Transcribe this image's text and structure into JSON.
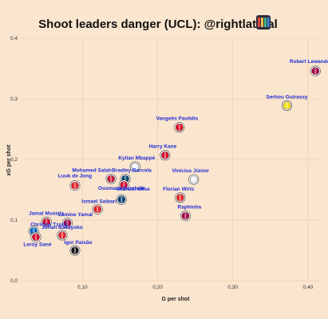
{
  "chart_data": {
    "type": "scatter",
    "title": "Shoot leaders danger (UCL): @rightlateral",
    "xlabel": "G per shot",
    "ylabel": "xG per shot",
    "xlim": [
      0.02,
      0.415
    ],
    "ylim": [
      0,
      0.4
    ],
    "xticks": [
      "0,10",
      "0,20",
      "0,30",
      "0,40"
    ],
    "yticks": [
      "0,0",
      "0,1",
      "0,2",
      "0,3",
      "0,4"
    ],
    "grid": true,
    "points": [
      {
        "name": "Robert Lewandowski",
        "x": 0.41,
        "y": 0.346,
        "club": "barcelona"
      },
      {
        "name": "Serhou Guirassy",
        "x": 0.372,
        "y": 0.289,
        "club": "dortmund"
      },
      {
        "name": "Vangelis Pavlidis",
        "x": 0.229,
        "y": 0.253,
        "club": "benfica"
      },
      {
        "name": "Harry Kane",
        "x": 0.21,
        "y": 0.207,
        "club": "bayern"
      },
      {
        "name": "Vinícius Júnior",
        "x": 0.248,
        "y": 0.167,
        "club": "real-madrid"
      },
      {
        "name": "Kylian Mbappé",
        "x": 0.17,
        "y": 0.188,
        "club": "real-madrid"
      },
      {
        "name": "Bradley Barcola",
        "x": 0.157,
        "y": 0.168,
        "club": "psg"
      },
      {
        "name": "Mohamed Salah",
        "x": 0.138,
        "y": 0.168,
        "club": "liverpool"
      },
      {
        "name": "Michael Olise",
        "x": 0.155,
        "y": 0.158,
        "club": "bayern"
      },
      {
        "name": "Luuk de Jong",
        "x": 0.09,
        "y": 0.157,
        "club": "psv"
      },
      {
        "name": "Florian Wirtz",
        "x": 0.23,
        "y": 0.137,
        "club": "leverkusen"
      },
      {
        "name": "Ousmane Dembélé",
        "x": 0.152,
        "y": 0.134,
        "club": "psg"
      },
      {
        "name": "Ismael Saibari",
        "x": 0.12,
        "y": 0.118,
        "club": "psv"
      },
      {
        "name": "Raphinha",
        "x": 0.237,
        "y": 0.107,
        "club": "barcelona"
      },
      {
        "name": "Jamal Musiala",
        "x": 0.052,
        "y": 0.097,
        "club": "bayern"
      },
      {
        "name": "Lamine Yamal",
        "x": 0.08,
        "y": 0.095,
        "club": "barcelona"
      },
      {
        "name": "Christos Tzolis",
        "x": 0.035,
        "y": 0.082,
        "club": "club-brugge"
      },
      {
        "name": "Johan Bakayoko",
        "x": 0.073,
        "y": 0.075,
        "club": "psv"
      },
      {
        "name": "Leroy Sané",
        "x": 0.038,
        "y": 0.072,
        "club": "bayern"
      },
      {
        "name": "Igor Paixão",
        "x": 0.09,
        "y": 0.05,
        "club": "feyenoord"
      }
    ]
  },
  "club_colors": {
    "barcelona": "#a50044",
    "dortmund": "#fde100",
    "benfica": "#e2001a",
    "bayern": "#dc052d",
    "real-madrid": "#f2f2f2",
    "psg": "#004170",
    "liverpool": "#c8102e",
    "psv": "#ed1c24",
    "leverkusen": "#e32221",
    "club-brugge": "#0067ce",
    "feyenoord": "#111111"
  }
}
